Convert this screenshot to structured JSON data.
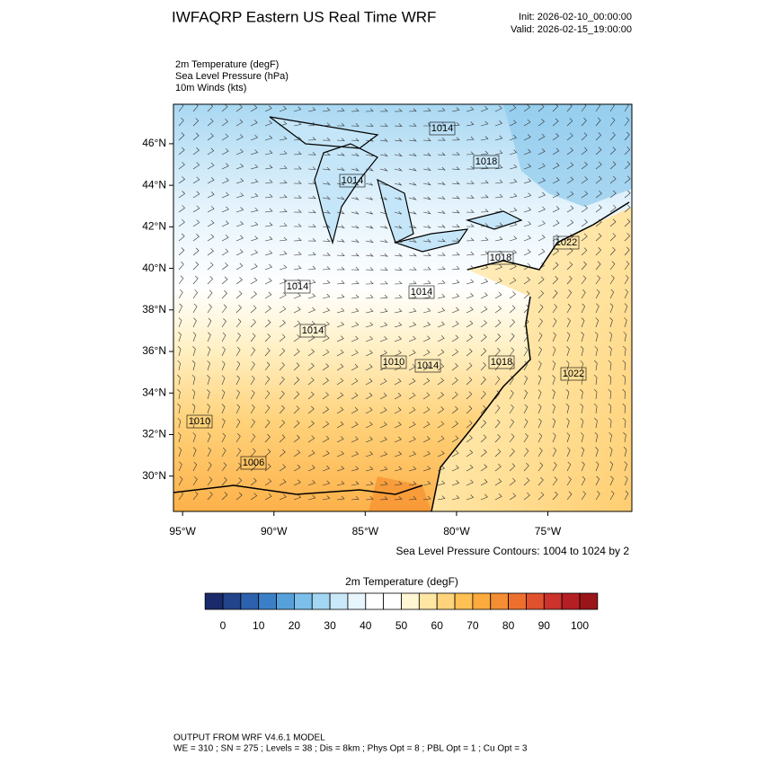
{
  "header": {
    "title": "IWFAQRP Eastern US Real Time WRF",
    "init": "Init: 2026-02-10_00:00:00",
    "valid": "Valid: 2026-02-15_19:00:00"
  },
  "fields": [
    "2m Temperature   (degF)",
    "Sea Level Pressure   (hPa)",
    "10m Winds   (kts)"
  ],
  "map": {
    "lat_lim": [
      28.3,
      47.9
    ],
    "lon_lim": [
      -95.5,
      -70.4
    ],
    "lat_ticks": [
      {
        "value": 46,
        "label": "46°N"
      },
      {
        "value": 44,
        "label": "44°N"
      },
      {
        "value": 42,
        "label": "42°N"
      },
      {
        "value": 40,
        "label": "40°N"
      },
      {
        "value": 38,
        "label": "38°N"
      },
      {
        "value": 36,
        "label": "36°N"
      },
      {
        "value": 34,
        "label": "34°N"
      },
      {
        "value": 32,
        "label": "32°N"
      },
      {
        "value": 30,
        "label": "30°N"
      }
    ],
    "lon_ticks": [
      {
        "value": -95,
        "label": "95°W"
      },
      {
        "value": -90,
        "label": "90°W"
      },
      {
        "value": -85,
        "label": "85°W"
      },
      {
        "value": -80,
        "label": "80°W"
      },
      {
        "value": -75,
        "label": "75°W"
      }
    ],
    "contour_labels": [
      "1014",
      "1018",
      "1014",
      "1022",
      "1018",
      "1014",
      "1014",
      "1014",
      "1010",
      "1014",
      "1018",
      "1022",
      "1010",
      "1006"
    ],
    "contour_note": "Sea Level Pressure Contours: 1004 to 1024 by 2"
  },
  "colorbar": {
    "title": "2m Temperature  (degF)",
    "ticks": [
      0,
      10,
      20,
      30,
      40,
      50,
      60,
      70,
      80,
      90,
      100
    ],
    "colors": [
      "#1b2a6b",
      "#22448a",
      "#2c62ad",
      "#3b80c6",
      "#56a0dc",
      "#7cbfea",
      "#a3d6f2",
      "#c9e8f9",
      "#e7f5fd",
      "#ffffff",
      "#ffffff",
      "#fff6d3",
      "#ffe7a3",
      "#ffd47c",
      "#ffc054",
      "#fdaa3e",
      "#f58d33",
      "#ec6f2e",
      "#e0512d",
      "#cb332c",
      "#b51f24",
      "#9a1519"
    ]
  },
  "footer": {
    "line1": "OUTPUT FROM WRF V4.6.1 MODEL",
    "line2": "WE = 310 ; SN = 275 ; Levels = 38 ; Dis = 8km ; Phys Opt = 8 ; PBL Opt = 1 ; Cu Opt = 3"
  }
}
